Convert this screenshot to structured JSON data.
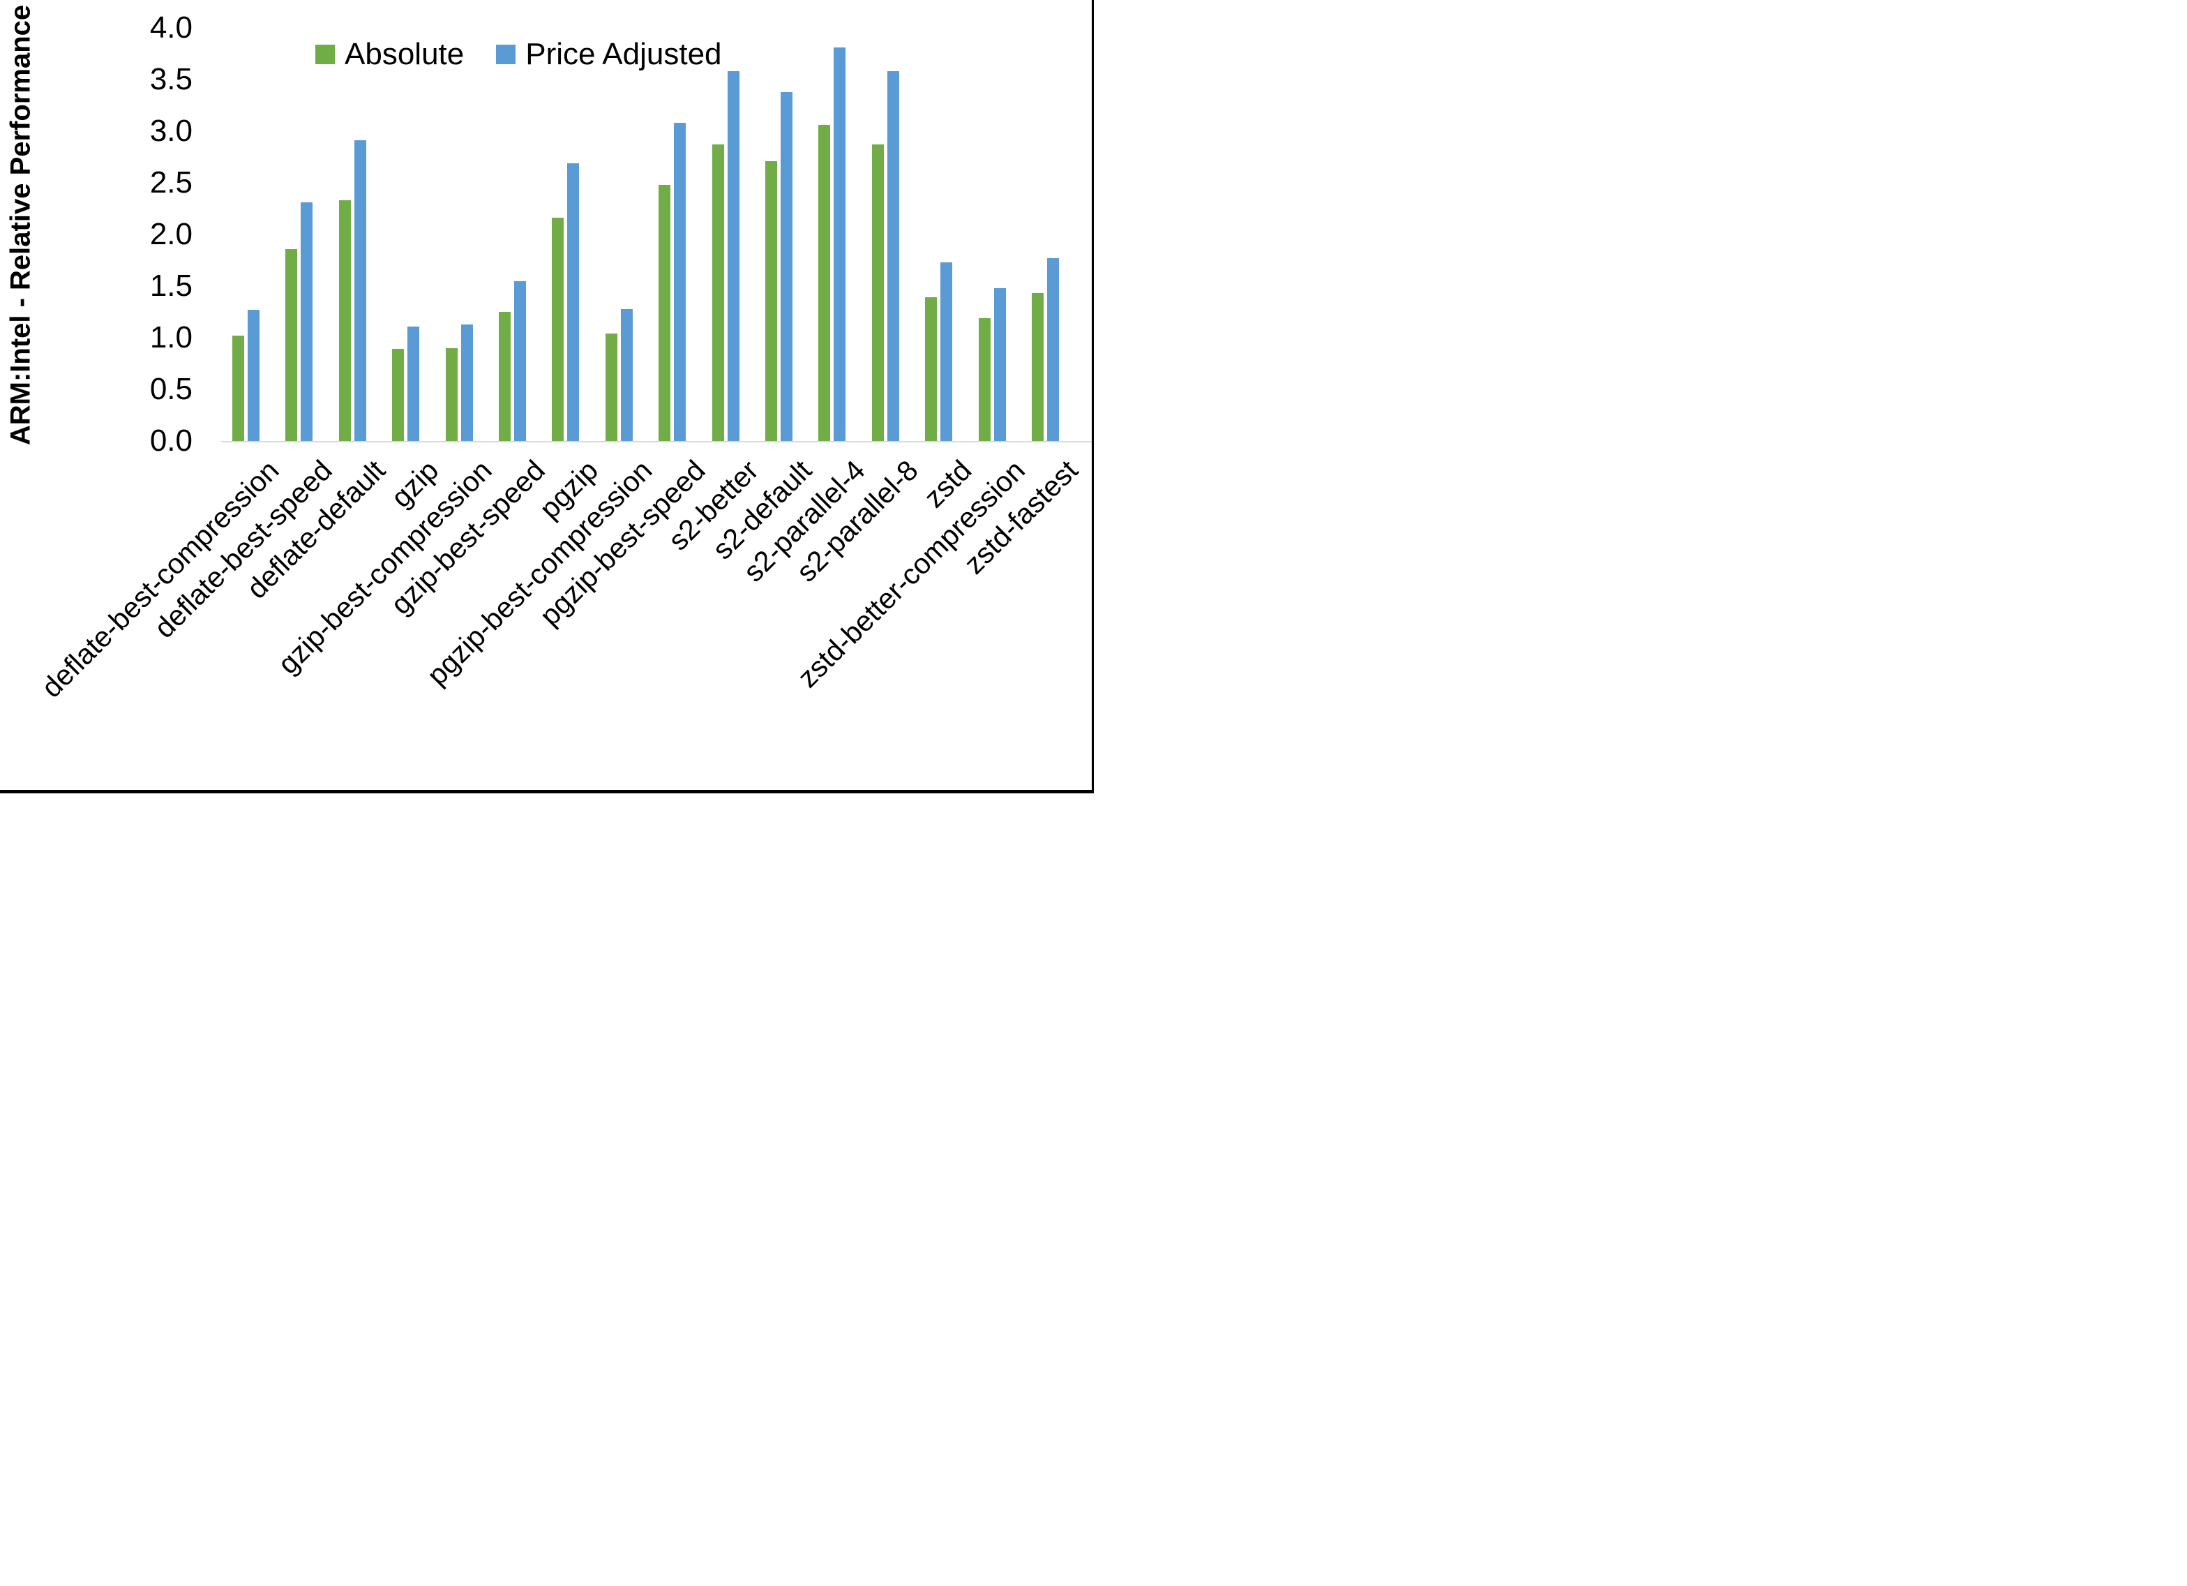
{
  "chart_data": {
    "type": "bar",
    "ylabel": "ARM:Intel - Relative Performance",
    "xlabel": "",
    "ylim": [
      0.0,
      4.0
    ],
    "ytick_step": 0.5,
    "ytick_labels": [
      "0.0",
      "0.5",
      "1.0",
      "1.5",
      "2.0",
      "2.5",
      "3.0",
      "3.5",
      "4.0"
    ],
    "grid": false,
    "legend_position": "top-center",
    "categories": [
      "deflate-best-compression",
      "deflate-best-speed",
      "deflate-default",
      "gzip",
      "gzip-best-compression",
      "gzip-best-speed",
      "pgzip",
      "pgzip-best-compression",
      "pgzip-best-speed",
      "s2-better",
      "s2-default",
      "s2-parallel-4",
      "s2-parallel-8",
      "zstd",
      "zstd-better-compression",
      "zstd-fastest"
    ],
    "series": [
      {
        "name": "Absolute",
        "color": "#70AD47",
        "values": [
          1.02,
          1.86,
          2.33,
          0.89,
          0.9,
          1.25,
          2.16,
          1.04,
          2.48,
          2.87,
          2.71,
          3.06,
          2.87,
          1.39,
          1.19,
          1.43
        ]
      },
      {
        "name": "Price Adjusted",
        "color": "#5B9BD5",
        "values": [
          1.27,
          2.31,
          2.91,
          1.11,
          1.13,
          1.55,
          2.69,
          1.28,
          3.08,
          3.58,
          3.38,
          3.81,
          3.58,
          1.73,
          1.48,
          1.77
        ]
      }
    ]
  },
  "frame": {
    "right_border_color": "#000000",
    "bottom_border_color": "#000000",
    "baseline_color": "#d9d9d9"
  }
}
